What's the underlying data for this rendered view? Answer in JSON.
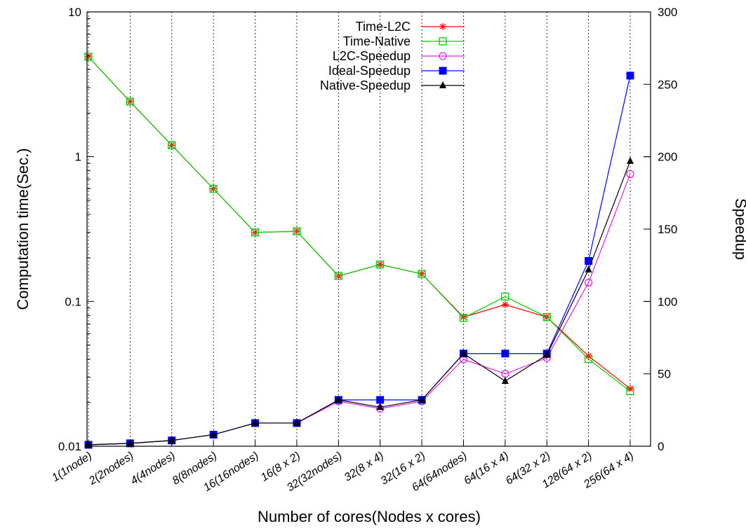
{
  "chart_data": {
    "type": "line",
    "title": "",
    "xlabel": "Number of cores(Nodes x cores)",
    "ylabel": "Computation time(Sec.)",
    "y2label": "Speedup",
    "categories": [
      "1(1node)",
      "2(2nodes)",
      "4(4nodes)",
      "8(8nodes)",
      "16(16nodes)",
      "16(8 x 2)",
      "32(32nodes)",
      "32(8 x 4)",
      "32(16 x 2)",
      "64(64nodes)",
      "64(16 x 4)",
      "64(32 x 2)",
      "128(64 x 2)",
      "256(64 x 4)"
    ],
    "y_scale": "log",
    "ylim": [
      0.01,
      10
    ],
    "y_ticks": [
      0.01,
      0.1,
      1,
      10
    ],
    "y_tick_labels": [
      "0.01",
      "0.1",
      "1",
      "10"
    ],
    "y2lim": [
      0,
      300
    ],
    "y2_ticks": [
      0,
      50,
      100,
      150,
      200,
      250,
      300
    ],
    "y2_tick_labels": [
      "0",
      "50",
      "100",
      "150",
      "200",
      "250",
      "300"
    ],
    "grid": "vertical dotted lines at each category",
    "legend_position": "top-center",
    "series": [
      {
        "name": "Time-L2C",
        "axis": "left",
        "color": "#ff0000",
        "marker": "star",
        "values": [
          4.9,
          2.4,
          1.2,
          0.6,
          0.3,
          0.305,
          0.15,
          0.18,
          0.155,
          0.078,
          0.095,
          0.078,
          0.042,
          0.025
        ]
      },
      {
        "name": "Time-Native",
        "axis": "left",
        "color": "#00cc00",
        "marker": "open-square",
        "values": [
          4.9,
          2.4,
          1.2,
          0.6,
          0.3,
          0.305,
          0.15,
          0.18,
          0.155,
          0.077,
          0.108,
          0.078,
          0.04,
          0.024
        ]
      },
      {
        "name": "L2C-Speedup",
        "axis": "right",
        "color": "#e020e0",
        "marker": "open-circle",
        "values": [
          1,
          2,
          4,
          8,
          16,
          16,
          31,
          26,
          31,
          60,
          50,
          61,
          113,
          188
        ]
      },
      {
        "name": "Ideal-Speedup",
        "axis": "right",
        "color": "#0000ff",
        "marker": "filled-square",
        "values": [
          1,
          2,
          4,
          8,
          16,
          16,
          32,
          32,
          32,
          64,
          64,
          64,
          128,
          256
        ]
      },
      {
        "name": "Native-Speedup",
        "axis": "right",
        "color": "#000000",
        "marker": "filled-triangle",
        "values": [
          1,
          2,
          4,
          8,
          16,
          16,
          32,
          27,
          32,
          64,
          45,
          63,
          122,
          197
        ]
      }
    ]
  }
}
